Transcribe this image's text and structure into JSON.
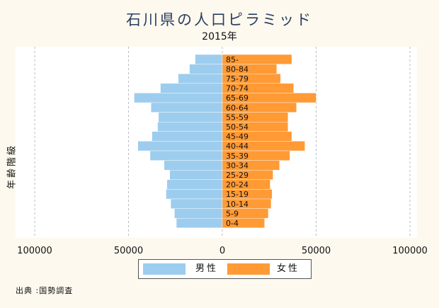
{
  "title": "石川県の人口ピラミッド",
  "subtitle": "2015年",
  "source": "出典 :国勢調査",
  "colors": {
    "male": "#9dcdee",
    "female": "#ff9a35",
    "plot_bg": "#ffffff",
    "page_bg": "#fdf9ee"
  },
  "legend": {
    "male": "男性",
    "female": "女性"
  },
  "chart_data": {
    "type": "bar",
    "orientation": "horizontal-pyramid",
    "ylabel": "年齢階級",
    "x_ticks": [
      "100000",
      "50000",
      "0",
      "50000",
      "100000"
    ],
    "xlim": [
      -100000,
      100000
    ],
    "grid": true,
    "legend_position": "bottom",
    "categories": [
      "85-",
      "80-84",
      "75-79",
      "70-74",
      "65-69",
      "60-64",
      "55-59",
      "50-54",
      "45-49",
      "40-44",
      "35-39",
      "30-34",
      "25-29",
      "20-24",
      "15-19",
      "10-14",
      "5-9",
      "0-4"
    ],
    "series": [
      {
        "name": "男性",
        "values": [
          14500,
          17500,
          23500,
          33000,
          47000,
          38000,
          34000,
          34500,
          37500,
          45000,
          38500,
          31000,
          28000,
          29500,
          30000,
          27500,
          25500,
          24500
        ]
      },
      {
        "name": "女性",
        "values": [
          37000,
          29000,
          31000,
          38000,
          50000,
          39500,
          35000,
          35000,
          37000,
          44000,
          36000,
          30500,
          27000,
          25500,
          26500,
          26000,
          24500,
          22500
        ]
      }
    ]
  }
}
